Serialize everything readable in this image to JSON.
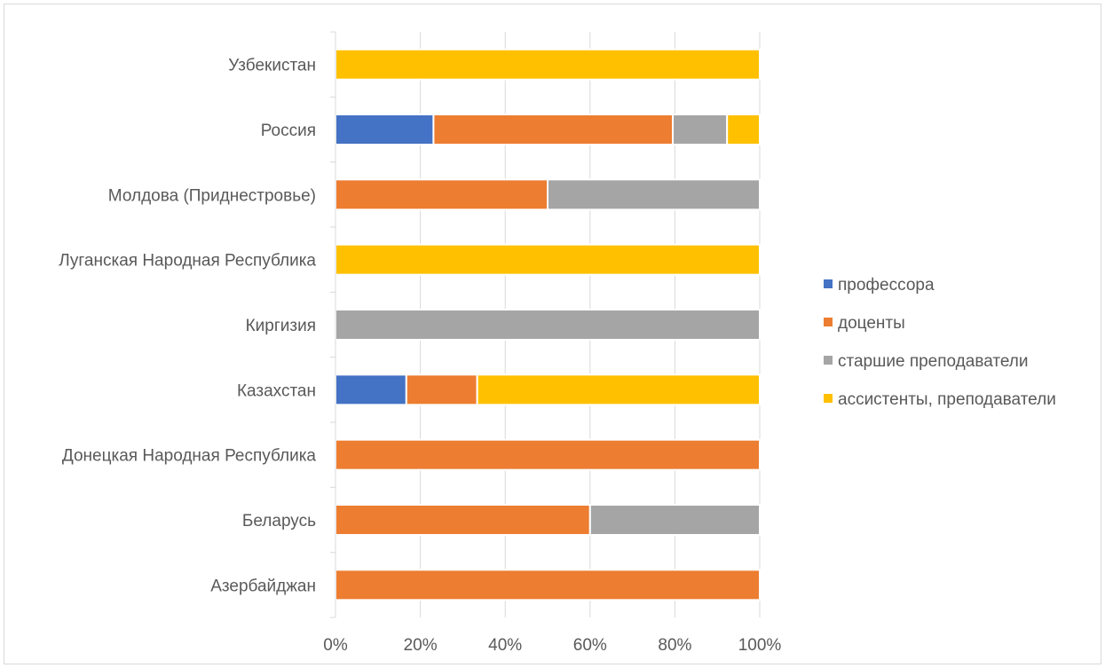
{
  "chart_data": {
    "type": "bar",
    "orientation": "horizontal",
    "stacking": "percent",
    "categories": [
      "Азербайджан",
      "Беларусь",
      "Донецкая Народная Республика",
      "Казахстан",
      "Киргизия",
      "Луганская Народная Республика",
      "Молдова (Приднестровье)",
      "Россия",
      "Узбекистан"
    ],
    "series": [
      {
        "name": "профессора",
        "color": "#4472C4",
        "values": [
          0,
          0,
          0,
          16.7,
          0,
          0,
          0,
          23.1,
          0
        ]
      },
      {
        "name": "доценты",
        "color": "#ED7D31",
        "values": [
          100,
          60,
          100,
          16.7,
          0,
          0,
          50,
          56.4,
          0
        ]
      },
      {
        "name": "старшие преподаватели",
        "color": "#A5A5A5",
        "values": [
          0,
          40,
          0,
          0,
          100,
          0,
          50,
          12.8,
          0
        ]
      },
      {
        "name": "ассистенты, преподаватели",
        "color": "#FFC000",
        "values": [
          0,
          0,
          0,
          66.6,
          0,
          100,
          0,
          7.7,
          100
        ]
      }
    ],
    "x_ticks": [
      "0%",
      "20%",
      "40%",
      "60%",
      "80%",
      "100%"
    ],
    "xlim": [
      0,
      100
    ],
    "grid": "vertical",
    "legend_position": "right",
    "title": "",
    "xlabel": "",
    "ylabel": ""
  }
}
